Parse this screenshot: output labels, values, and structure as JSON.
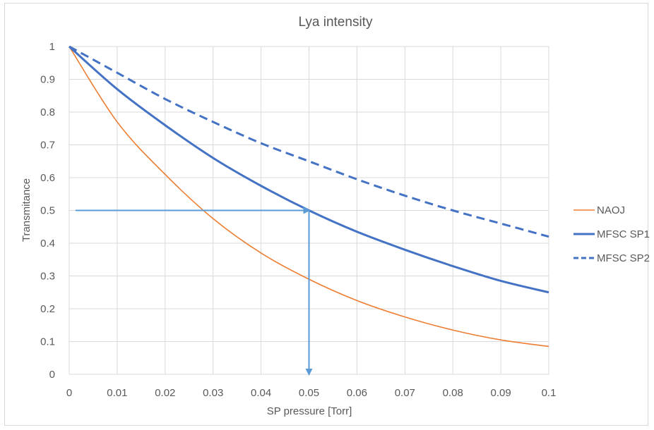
{
  "chart_data": {
    "type": "line",
    "title": "Lya intensity",
    "xlabel": "SP pressure [Torr]",
    "ylabel": "Transmitance",
    "xlim": [
      0,
      0.1
    ],
    "ylim": [
      0,
      1
    ],
    "x_ticks": [
      "0",
      "0.01",
      "0.02",
      "0.03",
      "0.04",
      "0.05",
      "0.06",
      "0.07",
      "0.08",
      "0.09",
      "0.1"
    ],
    "y_ticks": [
      "0",
      "0.1",
      "0.2",
      "0.3",
      "0.4",
      "0.5",
      "0.6",
      "0.7",
      "0.8",
      "0.9",
      "1"
    ],
    "grid": true,
    "legend_position": "right",
    "x": [
      0,
      0.01,
      0.02,
      0.03,
      0.04,
      0.05,
      0.06,
      0.07,
      0.08,
      0.09,
      0.1
    ],
    "series": [
      {
        "name": "NAOJ",
        "color": "#ed7d31",
        "style": "solid",
        "values": [
          1.0,
          0.77,
          0.61,
          0.475,
          0.37,
          0.29,
          0.225,
          0.175,
          0.135,
          0.105,
          0.085
        ]
      },
      {
        "name": "MFSC SP1",
        "color": "#4472c4",
        "style": "solid-thick",
        "values": [
          1.0,
          0.87,
          0.76,
          0.66,
          0.575,
          0.5,
          0.435,
          0.38,
          0.33,
          0.285,
          0.25
        ]
      },
      {
        "name": "MFSC SP2",
        "color": "#4472c4",
        "style": "dashed",
        "values": [
          1.0,
          0.92,
          0.84,
          0.77,
          0.705,
          0.65,
          0.595,
          0.545,
          0.5,
          0.46,
          0.42
        ]
      }
    ],
    "annotations": [
      {
        "type": "arrow",
        "color": "#5b9bd5",
        "from": [
          0.0013,
          0.5
        ],
        "to": [
          0.05,
          0.5
        ]
      },
      {
        "type": "arrow",
        "color": "#5b9bd5",
        "from": [
          0.05,
          0.5
        ],
        "to": [
          0.05,
          0.0
        ]
      }
    ]
  }
}
